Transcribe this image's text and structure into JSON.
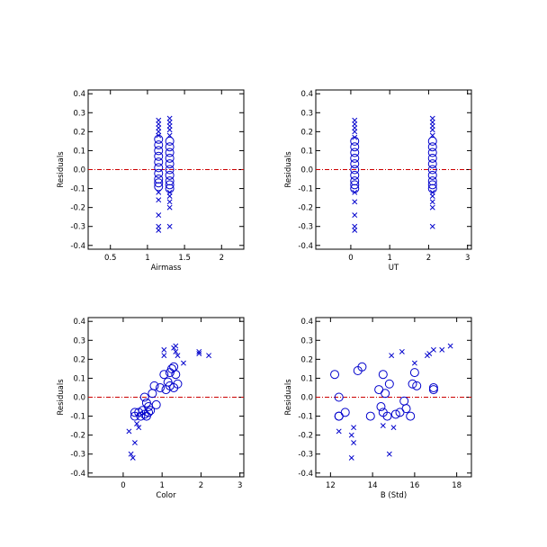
{
  "chart_data": [
    {
      "type": "scatter",
      "xlabel": "Airmass",
      "ylabel": "Residuals",
      "xlim": [
        0.2,
        2.3
      ],
      "ylim": [
        -0.42,
        0.42
      ],
      "xticks": [
        0.5,
        1,
        1.5,
        2
      ],
      "xticklabels": [
        "0.5",
        "1",
        "1.5",
        "2"
      ],
      "yticks": [
        -0.4,
        -0.3,
        -0.2,
        -0.1,
        0,
        0.1,
        0.2,
        0.3,
        0.4
      ],
      "yticklabels": [
        "-0.4",
        "-0.3",
        "-0.2",
        "-0.1",
        "0.0",
        "0.1",
        "0.2",
        "0.3",
        "0.4"
      ],
      "zero_line": true,
      "series": [
        {
          "marker": "circle",
          "points": [
            [
              1.15,
              0.13
            ],
            [
              1.15,
              0.1
            ],
            [
              1.15,
              0.07
            ],
            [
              1.15,
              0.04
            ],
            [
              1.15,
              0.01
            ],
            [
              1.15,
              -0.02
            ],
            [
              1.15,
              -0.05
            ],
            [
              1.15,
              -0.07
            ],
            [
              1.15,
              -0.09
            ],
            [
              1.15,
              0.16
            ],
            [
              1.3,
              0.15
            ],
            [
              1.3,
              0.12
            ],
            [
              1.3,
              0.09
            ],
            [
              1.3,
              0.06
            ],
            [
              1.3,
              0.03
            ],
            [
              1.3,
              0.0
            ],
            [
              1.3,
              -0.03
            ],
            [
              1.3,
              -0.06
            ],
            [
              1.3,
              -0.08
            ],
            [
              1.3,
              -0.1
            ]
          ]
        },
        {
          "marker": "x",
          "points": [
            [
              1.15,
              0.26
            ],
            [
              1.15,
              0.24
            ],
            [
              1.15,
              0.22
            ],
            [
              1.15,
              0.2
            ],
            [
              1.15,
              0.18
            ],
            [
              1.15,
              -0.12
            ],
            [
              1.15,
              -0.16
            ],
            [
              1.15,
              -0.24
            ],
            [
              1.15,
              -0.3
            ],
            [
              1.15,
              -0.32
            ],
            [
              1.3,
              0.27
            ],
            [
              1.3,
              0.25
            ],
            [
              1.3,
              0.23
            ],
            [
              1.3,
              0.21
            ],
            [
              1.3,
              0.18
            ],
            [
              1.3,
              -0.12
            ],
            [
              1.3,
              -0.14
            ],
            [
              1.3,
              -0.17
            ],
            [
              1.3,
              -0.2
            ],
            [
              1.3,
              -0.3
            ]
          ]
        }
      ]
    },
    {
      "type": "scatter",
      "xlabel": "UT",
      "ylabel": "Residuals",
      "xlim": [
        -0.9,
        3.1
      ],
      "ylim": [
        -0.42,
        0.42
      ],
      "xticks": [
        0,
        1,
        2,
        3
      ],
      "xticklabels": [
        "0",
        "1",
        "2",
        "3"
      ],
      "yticks": [
        -0.4,
        -0.3,
        -0.2,
        -0.1,
        0,
        0.1,
        0.2,
        0.3,
        0.4
      ],
      "yticklabels": [
        "-0.4",
        "-0.3",
        "-0.2",
        "-0.1",
        "0.0",
        "0.1",
        "0.2",
        "0.3",
        "0.4"
      ],
      "zero_line": true,
      "series": [
        {
          "marker": "circle",
          "points": [
            [
              0.1,
              0.12
            ],
            [
              0.1,
              0.09
            ],
            [
              0.1,
              0.06
            ],
            [
              0.1,
              0.03
            ],
            [
              0.1,
              0.0
            ],
            [
              0.1,
              -0.03
            ],
            [
              0.1,
              -0.06
            ],
            [
              0.1,
              -0.08
            ],
            [
              0.1,
              -0.1
            ],
            [
              0.1,
              0.15
            ],
            [
              2.1,
              0.15
            ],
            [
              2.1,
              0.12
            ],
            [
              2.1,
              0.09
            ],
            [
              2.1,
              0.06
            ],
            [
              2.1,
              0.03
            ],
            [
              2.1,
              0.0
            ],
            [
              2.1,
              -0.03
            ],
            [
              2.1,
              -0.06
            ],
            [
              2.1,
              -0.08
            ],
            [
              2.1,
              -0.1
            ]
          ]
        },
        {
          "marker": "x",
          "points": [
            [
              0.1,
              0.26
            ],
            [
              0.1,
              0.24
            ],
            [
              0.1,
              0.22
            ],
            [
              0.1,
              0.2
            ],
            [
              0.1,
              0.17
            ],
            [
              0.1,
              -0.12
            ],
            [
              0.1,
              -0.17
            ],
            [
              0.1,
              -0.24
            ],
            [
              0.1,
              -0.3
            ],
            [
              0.1,
              -0.32
            ],
            [
              2.1,
              0.27
            ],
            [
              2.1,
              0.25
            ],
            [
              2.1,
              0.23
            ],
            [
              2.1,
              0.21
            ],
            [
              2.1,
              0.18
            ],
            [
              2.1,
              -0.12
            ],
            [
              2.1,
              -0.14
            ],
            [
              2.1,
              -0.17
            ],
            [
              2.1,
              -0.2
            ],
            [
              2.1,
              -0.3
            ]
          ]
        }
      ]
    },
    {
      "type": "scatter",
      "xlabel": "Color",
      "ylabel": "Residuals",
      "xlim": [
        -0.9,
        3.1
      ],
      "ylim": [
        -0.42,
        0.42
      ],
      "xticks": [
        0,
        1,
        2,
        3
      ],
      "xticklabels": [
        "0",
        "1",
        "2",
        "3"
      ],
      "yticks": [
        -0.4,
        -0.3,
        -0.2,
        -0.1,
        0,
        0.1,
        0.2,
        0.3,
        0.4
      ],
      "yticklabels": [
        "-0.4",
        "-0.3",
        "-0.2",
        "-0.1",
        "0.0",
        "0.1",
        "0.2",
        "0.3",
        "0.4"
      ],
      "zero_line": true,
      "series": [
        {
          "marker": "circle",
          "points": [
            [
              0.3,
              -0.08
            ],
            [
              0.3,
              -0.1
            ],
            [
              0.4,
              -0.08
            ],
            [
              0.45,
              -0.1
            ],
            [
              0.5,
              -0.07
            ],
            [
              0.55,
              -0.09
            ],
            [
              0.55,
              0.0
            ],
            [
              0.6,
              -0.03
            ],
            [
              0.6,
              -0.1
            ],
            [
              0.65,
              -0.05
            ],
            [
              0.65,
              -0.08
            ],
            [
              0.7,
              -0.07
            ],
            [
              0.75,
              0.02
            ],
            [
              0.8,
              0.06
            ],
            [
              0.85,
              -0.04
            ],
            [
              0.95,
              0.05
            ],
            [
              1.05,
              0.12
            ],
            [
              1.1,
              0.04
            ],
            [
              1.15,
              0.08
            ],
            [
              1.2,
              0.06
            ],
            [
              1.25,
              0.15
            ],
            [
              1.3,
              0.16
            ],
            [
              1.35,
              0.12
            ],
            [
              1.4,
              0.07
            ],
            [
              1.3,
              0.05
            ],
            [
              1.2,
              0.13
            ]
          ]
        },
        {
          "marker": "x",
          "points": [
            [
              0.15,
              -0.18
            ],
            [
              0.2,
              -0.3
            ],
            [
              0.25,
              -0.32
            ],
            [
              0.3,
              -0.24
            ],
            [
              0.35,
              -0.14
            ],
            [
              0.4,
              -0.16
            ],
            [
              1.05,
              0.25
            ],
            [
              1.05,
              0.22
            ],
            [
              1.3,
              0.26
            ],
            [
              1.35,
              0.27
            ],
            [
              1.35,
              0.24
            ],
            [
              1.4,
              0.22
            ],
            [
              1.55,
              0.18
            ],
            [
              1.95,
              0.24
            ],
            [
              1.95,
              0.23
            ],
            [
              2.2,
              0.22
            ]
          ]
        }
      ]
    },
    {
      "type": "scatter",
      "xlabel": "B (Std)",
      "ylabel": "Residuals",
      "xlim": [
        11.3,
        18.7
      ],
      "ylim": [
        -0.42,
        0.42
      ],
      "xticks": [
        12,
        14,
        16,
        18
      ],
      "xticklabels": [
        "12",
        "14",
        "16",
        "18"
      ],
      "yticks": [
        -0.4,
        -0.3,
        -0.2,
        -0.1,
        0,
        0.1,
        0.2,
        0.3,
        0.4
      ],
      "yticklabels": [
        "-0.4",
        "-0.3",
        "-0.2",
        "-0.1",
        "0.0",
        "0.1",
        "0.2",
        "0.3",
        "0.4"
      ],
      "zero_line": true,
      "series": [
        {
          "marker": "circle",
          "points": [
            [
              12.2,
              0.12
            ],
            [
              12.4,
              0.0
            ],
            [
              12.4,
              -0.1
            ],
            [
              12.4,
              -0.1
            ],
            [
              12.7,
              -0.08
            ],
            [
              13.3,
              0.14
            ],
            [
              13.5,
              0.16
            ],
            [
              13.9,
              -0.1
            ],
            [
              14.3,
              0.04
            ],
            [
              14.4,
              -0.05
            ],
            [
              14.5,
              0.12
            ],
            [
              14.5,
              -0.08
            ],
            [
              14.6,
              0.02
            ],
            [
              14.7,
              -0.1
            ],
            [
              14.8,
              0.07
            ],
            [
              15.1,
              -0.09
            ],
            [
              15.3,
              -0.08
            ],
            [
              15.5,
              -0.02
            ],
            [
              15.6,
              -0.06
            ],
            [
              15.8,
              -0.1
            ],
            [
              15.9,
              0.07
            ],
            [
              16.0,
              0.13
            ],
            [
              16.1,
              0.06
            ],
            [
              16.9,
              0.05
            ],
            [
              16.9,
              0.04
            ]
          ]
        },
        {
          "marker": "x",
          "points": [
            [
              12.4,
              -0.18
            ],
            [
              13.0,
              -0.2
            ],
            [
              13.1,
              -0.16
            ],
            [
              13.1,
              -0.24
            ],
            [
              13.0,
              -0.32
            ],
            [
              14.5,
              -0.15
            ],
            [
              14.9,
              0.22
            ],
            [
              15.0,
              -0.16
            ],
            [
              14.8,
              -0.3
            ],
            [
              15.4,
              0.24
            ],
            [
              16.0,
              0.18
            ],
            [
              16.6,
              0.22
            ],
            [
              16.7,
              0.23
            ],
            [
              16.9,
              0.25
            ],
            [
              17.3,
              0.25
            ],
            [
              17.7,
              0.27
            ]
          ]
        }
      ]
    }
  ]
}
